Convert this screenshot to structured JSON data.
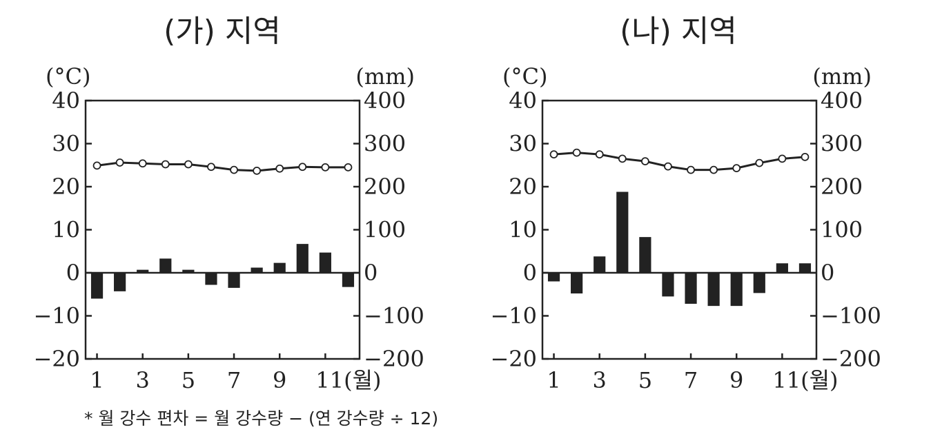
{
  "chart_data": [
    {
      "type": "bar+line",
      "title": "(가) 지역",
      "left_unit": "(°C)",
      "right_unit": "(mm)",
      "left_ticks": [
        "40",
        "30",
        "20",
        "10",
        "0",
        "−10",
        "−20"
      ],
      "right_ticks": [
        "400",
        "300",
        "200",
        "100",
        "0",
        "−100",
        "−200"
      ],
      "x_ticks": [
        "1",
        "3",
        "5",
        "7",
        "9",
        "11(월)"
      ],
      "ylim_left": [
        -20,
        40
      ],
      "ylim_right": [
        -200,
        400
      ],
      "months": [
        1,
        2,
        3,
        4,
        5,
        6,
        7,
        8,
        9,
        10,
        11,
        12
      ],
      "temperature": [
        24.9,
        25.6,
        25.4,
        25.2,
        25.2,
        24.6,
        23.9,
        23.7,
        24.2,
        24.6,
        24.5,
        24.5
      ],
      "precip_deviation": [
        -60,
        -43,
        7,
        33,
        7,
        -28,
        -35,
        12,
        23,
        67,
        47,
        -33
      ]
    },
    {
      "type": "bar+line",
      "title": "(나) 지역",
      "left_unit": "(°C)",
      "right_unit": "(mm)",
      "left_ticks": [
        "40",
        "30",
        "20",
        "10",
        "0",
        "−10",
        "−20"
      ],
      "right_ticks": [
        "400",
        "300",
        "200",
        "100",
        "0",
        "−100",
        "−200"
      ],
      "x_ticks": [
        "1",
        "3",
        "5",
        "7",
        "9",
        "11(월)"
      ],
      "ylim_left": [
        -20,
        40
      ],
      "ylim_right": [
        -200,
        400
      ],
      "months": [
        1,
        2,
        3,
        4,
        5,
        6,
        7,
        8,
        9,
        10,
        11,
        12
      ],
      "temperature": [
        27.5,
        27.9,
        27.5,
        26.5,
        25.9,
        24.7,
        23.9,
        23.9,
        24.3,
        25.5,
        26.5,
        26.9
      ],
      "precip_deviation": [
        -20,
        -48,
        38,
        188,
        83,
        -55,
        -72,
        -77,
        -77,
        -47,
        22,
        22
      ]
    }
  ],
  "footnote": "* 월 강수 편차 = 월 강수량 − (연 강수량 ÷ 12)"
}
